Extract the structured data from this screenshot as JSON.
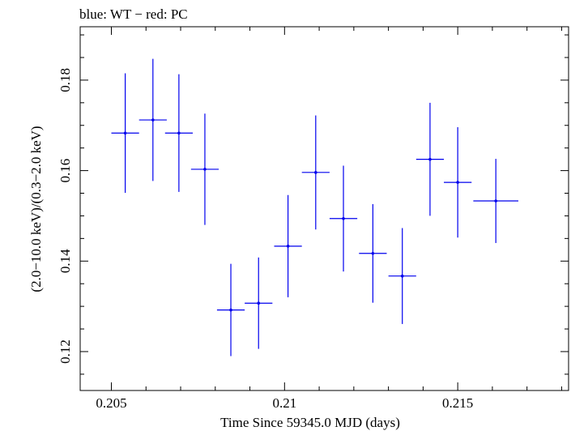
{
  "chart_data": {
    "type": "scatter",
    "title": "blue: WT − red: PC",
    "xlabel": "Time Since 59345.0 MJD (days)",
    "ylabel": "(2.0−10.0 keV)/(0.3−2.0 keV)",
    "xlim": [
      0.2041,
      0.2182
    ],
    "ylim": [
      0.1114,
      0.1918
    ],
    "x_ticks": [
      0.205,
      0.21,
      0.215
    ],
    "x_tick_labels": [
      "0.205",
      "0.21",
      "0.215"
    ],
    "y_ticks": [
      0.12,
      0.14,
      0.16,
      0.18
    ],
    "y_tick_labels": [
      "0.12",
      "0.14",
      "0.16",
      "0.18"
    ],
    "grid": false,
    "colors": {
      "WT": "#0000ee",
      "frame": "#000000"
    },
    "series": [
      {
        "name": "WT",
        "points": [
          {
            "x": 0.2054,
            "xerr": 0.0004,
            "y": 0.1683,
            "yerr": 0.0132
          },
          {
            "x": 0.2062,
            "xerr": 0.0004,
            "y": 0.1712,
            "yerr": 0.0135
          },
          {
            "x": 0.20695,
            "xerr": 0.0004,
            "y": 0.1683,
            "yerr": 0.013
          },
          {
            "x": 0.2077,
            "xerr": 0.0004,
            "y": 0.1603,
            "yerr": 0.0123
          },
          {
            "x": 0.20845,
            "xerr": 0.0004,
            "y": 0.1292,
            "yerr": 0.0102
          },
          {
            "x": 0.20925,
            "xerr": 0.0004,
            "y": 0.1307,
            "yerr": 0.0101
          },
          {
            "x": 0.2101,
            "xerr": 0.0004,
            "y": 0.1433,
            "yerr": 0.0113
          },
          {
            "x": 0.2109,
            "xerr": 0.0004,
            "y": 0.1596,
            "yerr": 0.0126
          },
          {
            "x": 0.2117,
            "xerr": 0.0004,
            "y": 0.1494,
            "yerr": 0.0117
          },
          {
            "x": 0.21255,
            "xerr": 0.0004,
            "y": 0.1417,
            "yerr": 0.0109
          },
          {
            "x": 0.2134,
            "xerr": 0.0004,
            "y": 0.1367,
            "yerr": 0.0106
          },
          {
            "x": 0.2142,
            "xerr": 0.0004,
            "y": 0.1625,
            "yerr": 0.0125
          },
          {
            "x": 0.215,
            "xerr": 0.0004,
            "y": 0.1574,
            "yerr": 0.0122
          },
          {
            "x": 0.2161,
            "xerr": 0.00065,
            "y": 0.1533,
            "yerr": 0.0093
          }
        ]
      }
    ]
  }
}
